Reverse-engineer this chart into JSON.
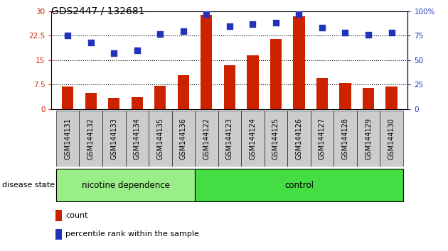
{
  "title": "GDS2447 / 132681",
  "samples": [
    "GSM144131",
    "GSM144132",
    "GSM144133",
    "GSM144134",
    "GSM144135",
    "GSM144136",
    "GSM144122",
    "GSM144123",
    "GSM144124",
    "GSM144125",
    "GSM144126",
    "GSM144127",
    "GSM144128",
    "GSM144129",
    "GSM144130"
  ],
  "bar_values": [
    7.0,
    5.0,
    3.5,
    3.8,
    7.2,
    10.5,
    29.0,
    13.5,
    16.5,
    21.5,
    28.5,
    9.5,
    8.0,
    6.5,
    7.0
  ],
  "percentile_values": [
    75,
    68,
    57,
    60,
    77,
    80,
    97,
    85,
    87,
    88,
    97,
    83,
    78,
    76,
    78
  ],
  "ylim_left": [
    0,
    30
  ],
  "ylim_right": [
    0,
    100
  ],
  "yticks_left": [
    0,
    7.5,
    15,
    22.5,
    30
  ],
  "yticks_right": [
    0,
    25,
    50,
    75,
    100
  ],
  "ytick_labels_left": [
    "0",
    "7.5",
    "15",
    "22.5",
    "30"
  ],
  "ytick_labels_right": [
    "0",
    "25",
    "50",
    "75",
    "100%"
  ],
  "hlines": [
    7.5,
    15,
    22.5
  ],
  "bar_color": "#cc2200",
  "dot_color": "#2233bb",
  "n_nicotine": 6,
  "n_total": 15,
  "nicotine_label": "nicotine dependence",
  "control_label": "control",
  "disease_state_label": "disease state",
  "legend_bar_label": "count",
  "legend_dot_label": "percentile rank within the sample",
  "nicotine_color": "#99ee88",
  "control_color": "#44dd44",
  "bg_color": "#ffffff",
  "xlabel_area_color": "#cccccc",
  "bar_width": 0.5,
  "dot_size": 30,
  "title_fontsize": 10,
  "tick_fontsize": 7.5,
  "label_fontsize": 8,
  "group_label_fontsize": 8.5,
  "tick_label_color_left": "#cc2200",
  "tick_label_color_right": "#2233bb"
}
